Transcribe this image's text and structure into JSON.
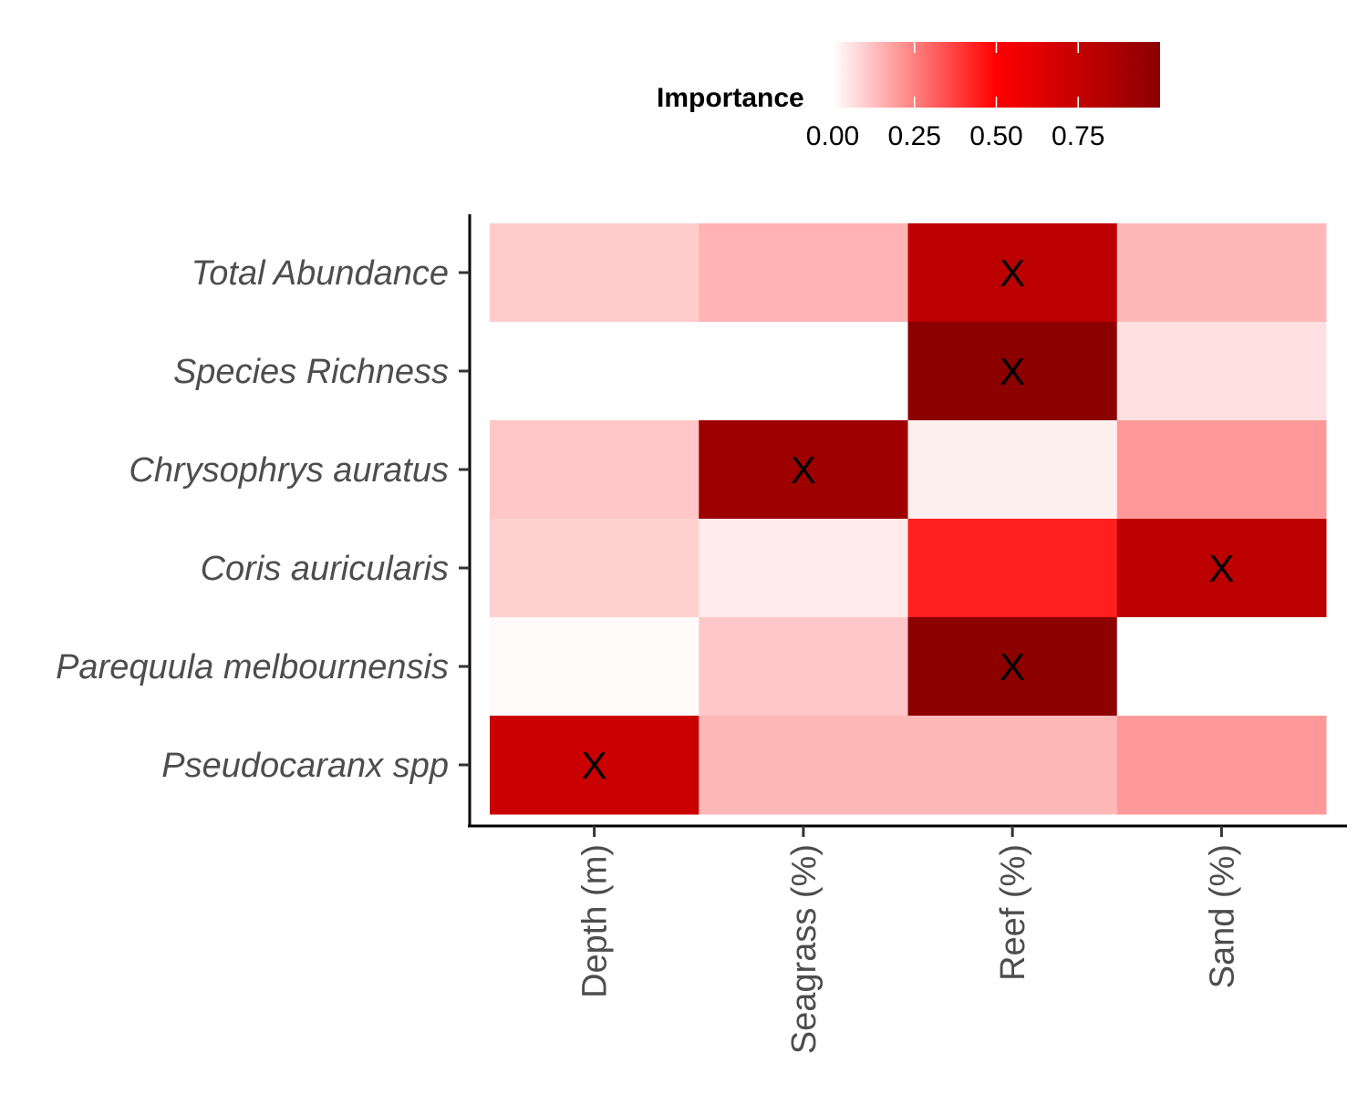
{
  "chart_data": {
    "type": "heatmap",
    "x_categories": [
      "Depth (m)",
      "Seagrass (%)",
      "Reef (%)",
      "Sand (%)"
    ],
    "y_categories": [
      "Total Abundance",
      "Species Richness",
      "Chrysophrys auratus",
      "Coris auricularis",
      "Parequula melbournensis",
      "Pseudocaranx spp"
    ],
    "values": [
      [
        0.1,
        0.15,
        0.79,
        0.14
      ],
      [
        0.0,
        0.0,
        0.99,
        0.06
      ],
      [
        0.11,
        0.92,
        0.03,
        0.2
      ],
      [
        0.09,
        0.04,
        0.44,
        0.79
      ],
      [
        0.01,
        0.11,
        0.99,
        0.0
      ],
      [
        0.73,
        0.14,
        0.14,
        0.2
      ]
    ],
    "marks": [
      [
        false,
        false,
        true,
        false
      ],
      [
        false,
        false,
        true,
        false
      ],
      [
        false,
        true,
        false,
        false
      ],
      [
        false,
        false,
        false,
        true
      ],
      [
        false,
        false,
        true,
        false
      ],
      [
        true,
        false,
        false,
        false
      ]
    ],
    "mark_symbol": "X",
    "legend": {
      "title": "Importance",
      "ticks": [
        "0.00",
        "0.25",
        "0.50",
        "0.75"
      ],
      "range": [
        0,
        1
      ],
      "colors": [
        "#ffffff",
        "#ff0000",
        "#8b0000"
      ],
      "placement": "top"
    }
  }
}
